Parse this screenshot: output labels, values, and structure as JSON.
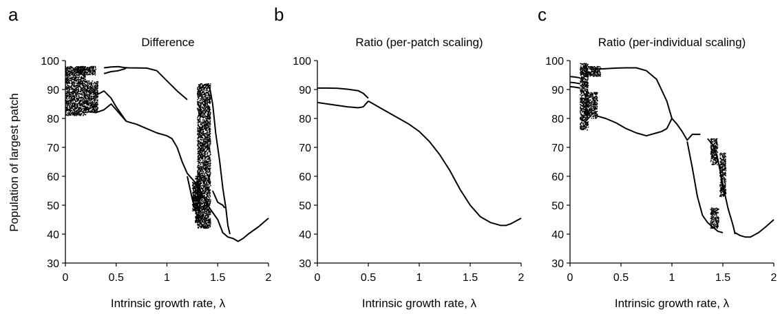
{
  "figure": {
    "ylabel": "Population of largest patch",
    "xlabel": "Intrinsic growth rate, λ"
  },
  "chart_data": [
    {
      "type": "scatter",
      "panel": "a",
      "title": "Difference",
      "xlabel": "Intrinsic growth rate, λ",
      "ylabel": "Population of largest patch",
      "xlim": [
        0,
        2
      ],
      "ylim": [
        30,
        100
      ],
      "xticks": [
        "0",
        "0.5",
        "1",
        "1.5",
        "2"
      ],
      "yticks": [
        "30",
        "40",
        "50",
        "60",
        "70",
        "80",
        "90",
        "100"
      ],
      "grid": false,
      "branches": [
        [
          [
            0.38,
            97.5
          ],
          [
            0.45,
            97.8
          ],
          [
            0.52,
            97.9
          ],
          [
            0.58,
            97.6
          ],
          [
            0.62,
            97.5
          ],
          [
            0.8,
            97.4
          ],
          [
            0.9,
            96.5
          ],
          [
            1.0,
            93
          ],
          [
            1.1,
            89.5
          ],
          [
            1.2,
            86.5
          ]
        ],
        [
          [
            0.38,
            95.5
          ],
          [
            0.45,
            96.2
          ],
          [
            0.52,
            96.5
          ],
          [
            0.58,
            97.1
          ],
          [
            0.6,
            97.5
          ]
        ],
        [
          [
            0.25,
            85
          ],
          [
            0.3,
            82
          ],
          [
            0.38,
            83
          ],
          [
            0.45,
            85
          ],
          [
            0.5,
            83
          ],
          [
            0.55,
            81
          ],
          [
            0.6,
            79
          ]
        ],
        [
          [
            0.6,
            79
          ],
          [
            0.7,
            78
          ],
          [
            0.8,
            76.5
          ],
          [
            0.9,
            75
          ],
          [
            1.0,
            74
          ],
          [
            1.05,
            73
          ],
          [
            1.1,
            70
          ],
          [
            1.15,
            65
          ],
          [
            1.2,
            61
          ],
          [
            1.3,
            57
          ],
          [
            1.4,
            50
          ],
          [
            1.5,
            45
          ],
          [
            1.55,
            40.5
          ],
          [
            1.6,
            39
          ],
          [
            1.65,
            38.5
          ],
          [
            1.7,
            37.5
          ],
          [
            1.75,
            38.5
          ],
          [
            1.8,
            40
          ],
          [
            1.9,
            42.5
          ],
          [
            2.0,
            45.5
          ]
        ],
        [
          [
            0.3,
            88
          ],
          [
            0.38,
            89.5
          ],
          [
            0.45,
            87
          ],
          [
            0.5,
            84
          ],
          [
            0.55,
            81.5
          ],
          [
            0.6,
            79
          ]
        ],
        [
          [
            1.42,
            91
          ],
          [
            1.45,
            85
          ],
          [
            1.48,
            75
          ],
          [
            1.52,
            65
          ],
          [
            1.55,
            56
          ],
          [
            1.58,
            49
          ],
          [
            1.6,
            43
          ],
          [
            1.62,
            40
          ]
        ],
        [
          [
            1.2,
            60
          ],
          [
            1.25,
            52
          ],
          [
            1.3,
            46
          ],
          [
            1.35,
            43
          ],
          [
            1.4,
            42
          ]
        ],
        [
          [
            1.45,
            55
          ],
          [
            1.5,
            51
          ],
          [
            1.55,
            50
          ],
          [
            1.57,
            49
          ]
        ]
      ],
      "chaotic_bands": [
        {
          "x": [
            0.0,
            0.2
          ],
          "y": [
            81,
            98
          ]
        },
        {
          "x": [
            0.2,
            0.32
          ],
          "y": [
            82,
            93
          ]
        },
        {
          "x": [
            0.12,
            0.3
          ],
          "y": [
            95,
            98
          ]
        },
        {
          "x": [
            1.28,
            1.32
          ],
          "y": [
            44,
            60
          ]
        },
        {
          "x": [
            1.3,
            1.43
          ],
          "y": [
            42,
            92
          ]
        },
        {
          "x": [
            1.25,
            1.33
          ],
          "y": [
            48,
            58
          ]
        }
      ]
    },
    {
      "type": "scatter",
      "panel": "b",
      "title": "Ratio (per-patch scaling)",
      "xlabel": "Intrinsic growth rate, λ",
      "ylabel": "",
      "xlim": [
        0,
        2
      ],
      "ylim": [
        30,
        100
      ],
      "xticks": [
        "0",
        "0.5",
        "1",
        "1.5",
        "2"
      ],
      "yticks": [
        "30",
        "40",
        "50",
        "60",
        "70",
        "80",
        "90",
        "100"
      ],
      "grid": false,
      "branches": [
        [
          [
            0,
            90.5
          ],
          [
            0.1,
            90.5
          ],
          [
            0.2,
            90.4
          ],
          [
            0.3,
            90.1
          ],
          [
            0.4,
            89.6
          ],
          [
            0.45,
            88.7
          ],
          [
            0.5,
            87
          ]
        ],
        [
          [
            0,
            85.5
          ],
          [
            0.1,
            85
          ],
          [
            0.2,
            84.5
          ],
          [
            0.3,
            84
          ],
          [
            0.4,
            83.7
          ],
          [
            0.45,
            84
          ],
          [
            0.5,
            86
          ]
        ],
        [
          [
            0.5,
            86
          ],
          [
            0.6,
            84
          ],
          [
            0.7,
            82
          ],
          [
            0.8,
            80
          ],
          [
            0.9,
            78
          ],
          [
            1.0,
            75.5
          ],
          [
            1.1,
            72
          ],
          [
            1.2,
            67.5
          ],
          [
            1.3,
            62
          ],
          [
            1.4,
            55.5
          ],
          [
            1.5,
            50
          ],
          [
            1.6,
            46
          ],
          [
            1.7,
            44
          ],
          [
            1.8,
            43
          ],
          [
            1.85,
            43
          ],
          [
            1.9,
            43.6
          ],
          [
            2.0,
            45.5
          ]
        ]
      ],
      "chaotic_bands": []
    },
    {
      "type": "scatter",
      "panel": "c",
      "title": "Ratio (per-individual scaling)",
      "xlabel": "Intrinsic growth rate, λ",
      "ylabel": "",
      "xlim": [
        0,
        2
      ],
      "ylim": [
        30,
        100
      ],
      "xticks": [
        "0",
        "0.5",
        "1",
        "1.5",
        "2"
      ],
      "yticks": [
        "30",
        "40",
        "50",
        "60",
        "70",
        "80",
        "90",
        "100"
      ],
      "grid": false,
      "branches": [
        [
          [
            0,
            94.5
          ],
          [
            0.05,
            94.3
          ],
          [
            0.1,
            94
          ]
        ],
        [
          [
            0,
            92.5
          ],
          [
            0.05,
            92.3
          ],
          [
            0.1,
            92
          ]
        ],
        [
          [
            0,
            91
          ],
          [
            0.05,
            90.8
          ],
          [
            0.1,
            90.5
          ]
        ],
        [
          [
            0.25,
            97
          ],
          [
            0.35,
            97.2
          ],
          [
            0.45,
            97.4
          ],
          [
            0.55,
            97.5
          ],
          [
            0.65,
            97.5
          ],
          [
            0.75,
            96.5
          ],
          [
            0.85,
            93.5
          ],
          [
            0.95,
            86
          ],
          [
            1.0,
            80
          ]
        ],
        [
          [
            0.25,
            81
          ],
          [
            0.35,
            80
          ],
          [
            0.45,
            78.5
          ],
          [
            0.55,
            76.5
          ],
          [
            0.65,
            75
          ],
          [
            0.75,
            74
          ],
          [
            0.8,
            74.5
          ],
          [
            0.85,
            75
          ],
          [
            0.9,
            75.5
          ],
          [
            0.95,
            76.5
          ],
          [
            1.0,
            80
          ]
        ],
        [
          [
            1.0,
            80
          ],
          [
            1.05,
            78
          ],
          [
            1.1,
            75.5
          ],
          [
            1.15,
            72.5
          ],
          [
            1.2,
            74.5
          ],
          [
            1.28,
            74.5
          ]
        ],
        [
          [
            1.15,
            72
          ],
          [
            1.2,
            63
          ],
          [
            1.25,
            53
          ],
          [
            1.3,
            46.5
          ],
          [
            1.35,
            44
          ],
          [
            1.4,
            42.5
          ],
          [
            1.45,
            41
          ],
          [
            1.5,
            40.5
          ]
        ],
        [
          [
            1.35,
            73
          ],
          [
            1.4,
            71
          ],
          [
            1.45,
            66
          ],
          [
            1.5,
            57
          ],
          [
            1.55,
            49
          ],
          [
            1.6,
            43
          ],
          [
            1.62,
            40
          ]
        ],
        [
          [
            1.62,
            40.5
          ],
          [
            1.67,
            39.5
          ],
          [
            1.72,
            39
          ],
          [
            1.77,
            39
          ],
          [
            1.85,
            40.5
          ],
          [
            1.92,
            42.5
          ],
          [
            2.0,
            45
          ]
        ]
      ],
      "chaotic_bands": [
        {
          "x": [
            0.1,
            0.18
          ],
          "y": [
            76,
            99
          ]
        },
        {
          "x": [
            0.15,
            0.27
          ],
          "y": [
            80,
            89
          ]
        },
        {
          "x": [
            0.13,
            0.3
          ],
          "y": [
            94.5,
            98
          ]
        },
        {
          "x": [
            1.38,
            1.45
          ],
          "y": [
            64,
            73
          ]
        },
        {
          "x": [
            1.47,
            1.53
          ],
          "y": [
            53,
            68
          ]
        },
        {
          "x": [
            1.38,
            1.46
          ],
          "y": [
            42,
            49
          ]
        }
      ]
    }
  ]
}
